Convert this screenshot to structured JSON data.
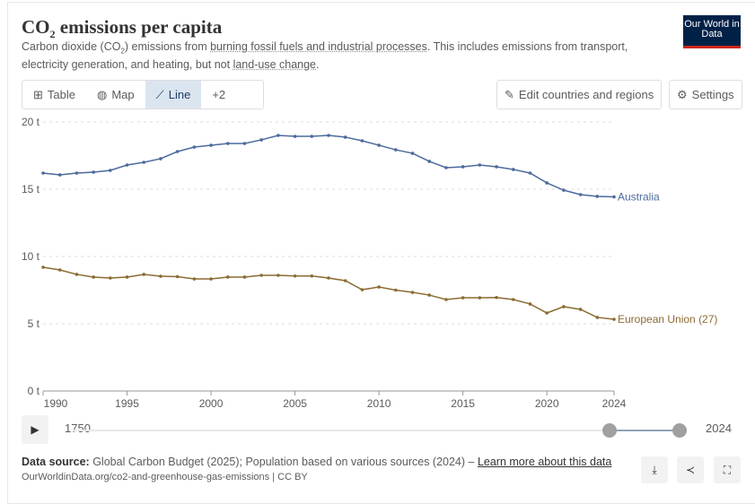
{
  "header": {
    "title_pre": "CO",
    "title_sub": "2",
    "title_post": " emissions per capita",
    "subtitle_1": "Carbon dioxide (CO",
    "subtitle_sub": "2",
    "subtitle_2": ") emissions from ",
    "subtitle_link1": "burning fossil fuels and industrial processes",
    "subtitle_3": ". This includes emissions from transport, electricity generation, and heating, but not ",
    "subtitle_link2": "land-use change",
    "subtitle_4": ".",
    "logo": "Our World in Data"
  },
  "tabs": [
    {
      "label": "Table",
      "icon": "table-icon"
    },
    {
      "label": "Map",
      "icon": "globe-icon"
    },
    {
      "label": "Line",
      "icon": "line-chart-icon",
      "active": true
    },
    {
      "label": "+2"
    }
  ],
  "buttons": {
    "edit": "Edit countries and regions",
    "settings": "Settings"
  },
  "timeline": {
    "start": "1750",
    "end": "2024"
  },
  "footer": {
    "source_label": "Data source:",
    "source_text": " Global Carbon Budget (2025); Population based on various sources (2024) – ",
    "learn_more": "Learn more about this data",
    "url": "OurWorldinData.org/co2-and-greenhouse-gas-emissions | CC BY"
  },
  "colors": {
    "australia": "#4c6a9c",
    "eu": "#8c6b33"
  },
  "chart_data": {
    "type": "line",
    "title": "CO2 emissions per capita",
    "ylim": [
      0,
      20
    ],
    "yticks": [
      0,
      5,
      10,
      15,
      20
    ],
    "ytick_labels": [
      "0 t",
      "5 t",
      "10 t",
      "15 t",
      "20 t"
    ],
    "xticks": [
      1990,
      1995,
      2000,
      2005,
      2010,
      2015,
      2020,
      2024
    ],
    "x": [
      1990,
      1991,
      1992,
      1993,
      1994,
      1995,
      1996,
      1997,
      1998,
      1999,
      2000,
      2001,
      2002,
      2003,
      2004,
      2005,
      2006,
      2007,
      2008,
      2009,
      2010,
      2011,
      2012,
      2013,
      2014,
      2015,
      2016,
      2017,
      2018,
      2019,
      2020,
      2021,
      2022,
      2023,
      2024
    ],
    "series": [
      {
        "name": "Australia",
        "values": [
          16.2,
          16.07,
          16.2,
          16.27,
          16.4,
          16.8,
          17.0,
          17.27,
          17.8,
          18.13,
          18.27,
          18.4,
          18.4,
          18.67,
          19.0,
          18.93,
          18.93,
          19.0,
          18.87,
          18.6,
          18.27,
          17.93,
          17.67,
          17.07,
          16.6,
          16.67,
          16.8,
          16.67,
          16.47,
          16.2,
          15.47,
          14.93,
          14.6,
          14.47,
          14.43
        ]
      },
      {
        "name": "European Union (27)",
        "values": [
          9.2,
          9.0,
          8.67,
          8.47,
          8.4,
          8.47,
          8.67,
          8.53,
          8.5,
          8.33,
          8.33,
          8.47,
          8.47,
          8.6,
          8.6,
          8.55,
          8.55,
          8.4,
          8.2,
          7.53,
          7.73,
          7.5,
          7.33,
          7.13,
          6.8,
          6.93,
          6.93,
          6.95,
          6.8,
          6.47,
          5.8,
          6.27,
          6.07,
          5.47,
          5.33
        ]
      }
    ],
    "grid": true,
    "legend": "inline-right"
  }
}
